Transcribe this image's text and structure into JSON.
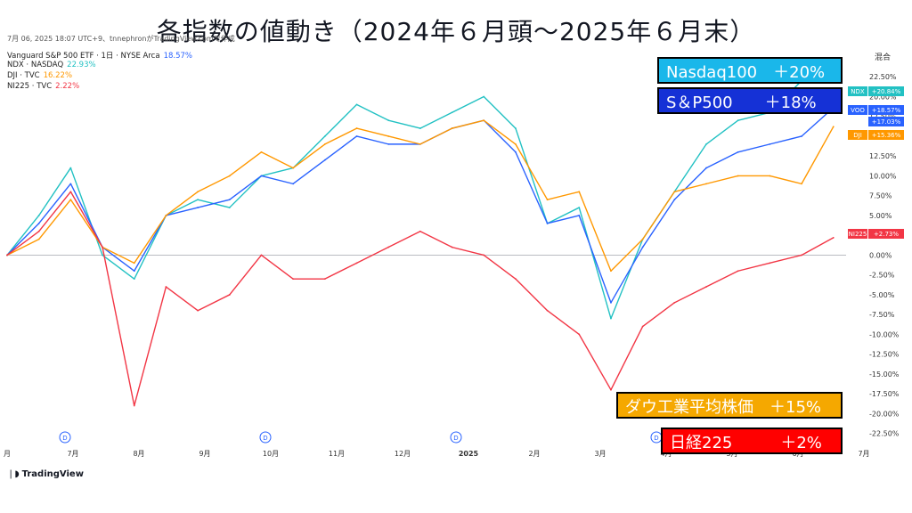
{
  "page_title": "各指数の値動き（2024年６月頭〜2025年６月末）",
  "meta_line": "7月 06, 2025 18:07 UTC+9、tnnephronがTradingView.comで作成",
  "legend": [
    {
      "label": "Vanguard S&P 500 ETF · 1日 · NYSE Arca",
      "value": "18.57%",
      "color": "#2962ff"
    },
    {
      "label": "NDX · NASDAQ",
      "value": "22.93%",
      "color": "#22c1c3"
    },
    {
      "label": "DJI · TVC",
      "value": "16.22%",
      "color": "#ff9800"
    },
    {
      "label": "NI225 · TVC",
      "value": "2.22%",
      "color": "#f23645"
    }
  ],
  "scale_mode_label": "混合",
  "tradingview_label": "TradingView",
  "callouts": [
    {
      "text": "Nasdaq100　＋20%",
      "bg": "#1ab7ea"
    },
    {
      "text": "S＆P500　　＋18%",
      "bg": "#1531d6"
    },
    {
      "text": "ダウ工業平均株価　＋15%",
      "bg": "#f5a800"
    },
    {
      "text": "日経225　　　＋2%",
      "bg": "#ff0000"
    }
  ],
  "right_badges": [
    {
      "ticker": "NDX",
      "value": "+20.84%",
      "color": "#22c1c3"
    },
    {
      "ticker": "VOO",
      "value": "+18.57%",
      "color": "#2962ff"
    },
    {
      "ticker": "",
      "value": "+17.03%",
      "color": "#2962ff"
    },
    {
      "ticker": "DJI",
      "value": "+15.36%",
      "color": "#ff9800"
    },
    {
      "ticker": "NI225",
      "value": "+2.73%",
      "color": "#f23645"
    }
  ],
  "dividend_marker": "D",
  "chart_data": {
    "type": "line",
    "x_tick_labels": [
      "月",
      "7月",
      "8月",
      "9月",
      "10月",
      "11月",
      "12月",
      "2025",
      "2月",
      "3月",
      "4月",
      "5月",
      "6月",
      "7月"
    ],
    "y_tick_labels": [
      "22.50%",
      "20.00%",
      "17.50%",
      "15.00%",
      "12.50%",
      "10.00%",
      "7.50%",
      "5.00%",
      "2.50%",
      "0.00%",
      "-2.50%",
      "-5.00%",
      "-7.50%",
      "-10.00%",
      "-12.50%",
      "-15.00%",
      "-17.50%",
      "-20.00%",
      "-22.50%"
    ],
    "ylim": [
      -24,
      25
    ],
    "x_positions": [
      0,
      0.5,
      1,
      1.5,
      2,
      2.5,
      3,
      3.5,
      4,
      4.5,
      5,
      5.5,
      6,
      6.5,
      7,
      7.5,
      8,
      8.5,
      9,
      9.5,
      10,
      10.5,
      11,
      11.5,
      12,
      12.5,
      13
    ],
    "series": [
      {
        "name": "NDX",
        "color": "#22c1c3",
        "values": [
          0,
          5,
          11,
          0,
          -3,
          5,
          7,
          6,
          10,
          11,
          15,
          19,
          17,
          16,
          18,
          20,
          16,
          4,
          6,
          -8,
          2,
          8,
          14,
          17,
          18,
          22,
          22.9
        ]
      },
      {
        "name": "VOO",
        "color": "#2962ff",
        "values": [
          0,
          4,
          9,
          1,
          -2,
          5,
          6,
          7,
          10,
          9,
          12,
          15,
          14,
          14,
          16,
          17,
          13,
          4,
          5,
          -6,
          1,
          7,
          11,
          13,
          14,
          15,
          18.6
        ]
      },
      {
        "name": "DJI",
        "color": "#ff9800",
        "values": [
          0,
          2,
          7,
          1,
          -1,
          5,
          8,
          10,
          13,
          11,
          14,
          16,
          15,
          14,
          16,
          17,
          14,
          7,
          8,
          -2,
          2,
          8,
          9,
          10,
          10,
          9,
          16.2
        ]
      },
      {
        "name": "NI225",
        "color": "#f23645",
        "values": [
          0,
          3,
          8,
          1,
          -19,
          -4,
          -7,
          -5,
          0,
          -3,
          -3,
          -1,
          1,
          3,
          1,
          0,
          -3,
          -7,
          -10,
          -17,
          -9,
          -6,
          -4,
          -2,
          -1,
          0,
          2.2
        ]
      }
    ]
  }
}
